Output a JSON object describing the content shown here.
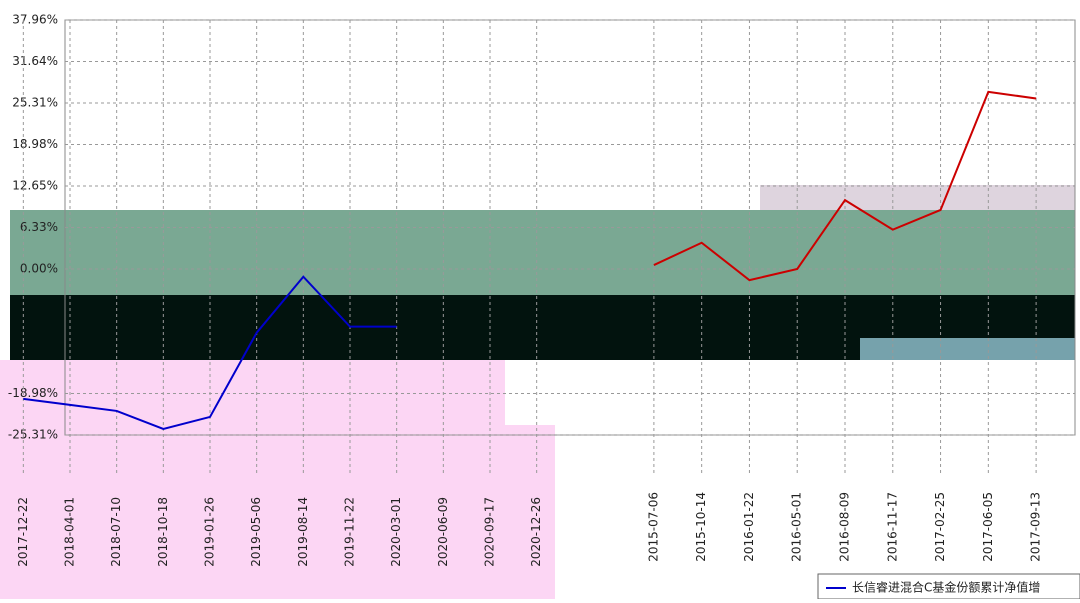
{
  "chart_data": [
    {
      "type": "line",
      "categories": [
        "2015-07-06",
        "2015-10-14",
        "2016-01-22",
        "2016-05-01",
        "2016-08-09",
        "2016-11-17",
        "2017-02-25",
        "2017-06-05",
        "2017-09-13"
      ],
      "series": [
        {
          "color": "#cc0000",
          "values": [
            0.6,
            4,
            -1.7,
            0,
            10.5,
            6,
            9,
            27,
            26
          ]
        }
      ],
      "ylim": [
        -25.31,
        37.96
      ],
      "yticks": [
        {
          "value": 37.96,
          "label": "37.96%"
        },
        {
          "value": 31.64,
          "label": "31.64%"
        },
        {
          "value": 25.31,
          "label": "25.31%"
        },
        {
          "value": 18.98,
          "label": "18.98%"
        },
        {
          "value": 12.65,
          "label": "12.65%"
        },
        {
          "value": 6.33,
          "label": "6.33%"
        },
        {
          "value": 0,
          "label": "0.00%"
        },
        {
          "value": -18.98,
          "label": "-18.98%"
        },
        {
          "value": -25.31,
          "label": "-25.31%"
        }
      ],
      "grid": true
    },
    {
      "type": "line",
      "categories": [
        "2017-12-22",
        "2018-04-01",
        "2018-07-10",
        "2018-10-18",
        "2019-01-26",
        "2019-05-06",
        "2019-08-14",
        "2019-11-22",
        "2020-03-01",
        "2020-06-09",
        "2020-09-17",
        "2020-12-26"
      ],
      "series": [
        {
          "name": "长信睿进混合C基金份额累计净值增",
          "color": "#0000cc",
          "values": [
            -25,
            -26,
            -27,
            -30,
            -28,
            -14,
            -4.7,
            -13,
            -13,
            null,
            null,
            null
          ]
        }
      ],
      "ylim": [
        -31,
        37.96
      ],
      "grid": true
    }
  ]
}
